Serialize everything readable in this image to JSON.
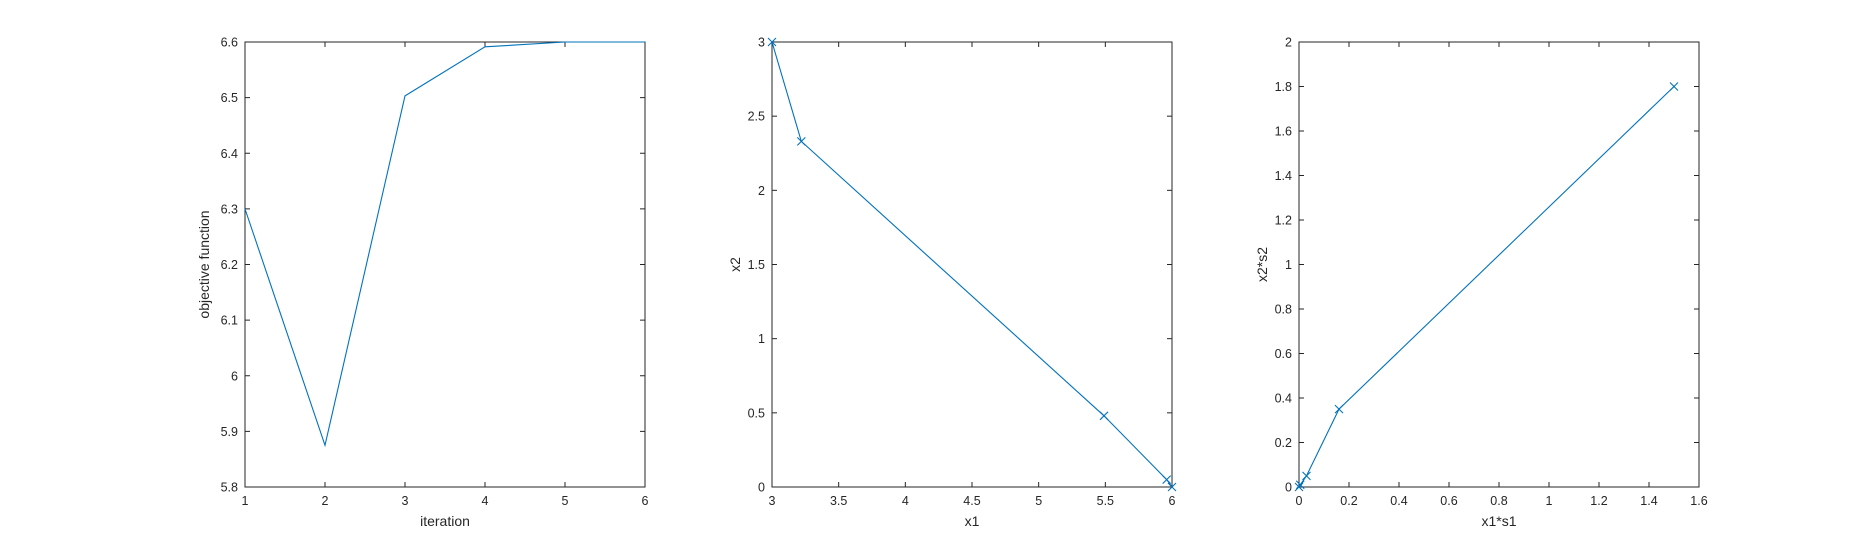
{
  "colors": {
    "series": "#0072BD",
    "axis": "#262626",
    "background": "#ffffff"
  },
  "chart_data": [
    {
      "type": "line",
      "title": "",
      "xlabel": "iteration",
      "ylabel": "objective function",
      "xlim": [
        1,
        6
      ],
      "ylim": [
        5.8,
        6.6
      ],
      "xticks": [
        1,
        2,
        3,
        4,
        5,
        6
      ],
      "yticks": [
        5.8,
        5.9,
        6,
        6.1,
        6.2,
        6.3,
        6.4,
        6.5,
        6.6
      ],
      "xtick_labels": [
        "1",
        "2",
        "3",
        "4",
        "5",
        "6"
      ],
      "ytick_labels": [
        "5.8",
        "5.9",
        "6",
        "6.1",
        "6.2",
        "6.3",
        "6.4",
        "6.5",
        "6.6"
      ],
      "marker": "none",
      "grid": false,
      "series": [
        {
          "x": [
            1,
            2,
            3,
            4,
            5,
            6
          ],
          "y": [
            6.3,
            5.875,
            6.5031,
            6.5913,
            6.6,
            6.6
          ]
        }
      ]
    },
    {
      "type": "line",
      "title": "",
      "xlabel": "x1",
      "ylabel": "x2",
      "xlim": [
        3,
        6
      ],
      "ylim": [
        0,
        3
      ],
      "xticks": [
        3,
        3.5,
        4,
        4.5,
        5,
        5.5,
        6
      ],
      "yticks": [
        0,
        0.5,
        1,
        1.5,
        2,
        2.5,
        3
      ],
      "xtick_labels": [
        "3",
        "3.5",
        "4",
        "4.5",
        "5",
        "5.5",
        "6"
      ],
      "ytick_labels": [
        "0",
        "0.5",
        "1",
        "1.5",
        "2",
        "2.5",
        "3"
      ],
      "marker": "x",
      "grid": false,
      "series": [
        {
          "x": [
            3,
            3.22,
            5.49,
            5.96,
            6
          ],
          "y": [
            3,
            2.33,
            0.48,
            0.05,
            0
          ]
        }
      ]
    },
    {
      "type": "line",
      "title": "",
      "xlabel": "x1*s1",
      "ylabel": "x2*s2",
      "xlim": [
        0,
        1.6
      ],
      "ylim": [
        0,
        2
      ],
      "xticks": [
        0,
        0.2,
        0.4,
        0.6,
        0.8,
        1,
        1.2,
        1.4,
        1.6
      ],
      "yticks": [
        0,
        0.2,
        0.4,
        0.6,
        0.8,
        1,
        1.2,
        1.4,
        1.6,
        1.8,
        2
      ],
      "xtick_labels": [
        "0",
        "0.2",
        "0.4",
        "0.6",
        "0.8",
        "1",
        "1.2",
        "1.4",
        "1.6"
      ],
      "ytick_labels": [
        "0",
        "0.2",
        "0.4",
        "0.6",
        "0.8",
        "1",
        "1.2",
        "1.4",
        "1.6",
        "1.8",
        "2"
      ],
      "marker": "x",
      "grid": false,
      "series": [
        {
          "x": [
            1.5,
            0.16,
            0.03,
            0.005,
            0
          ],
          "y": [
            1.8,
            0.35,
            0.05,
            0.01,
            0
          ]
        }
      ]
    }
  ]
}
